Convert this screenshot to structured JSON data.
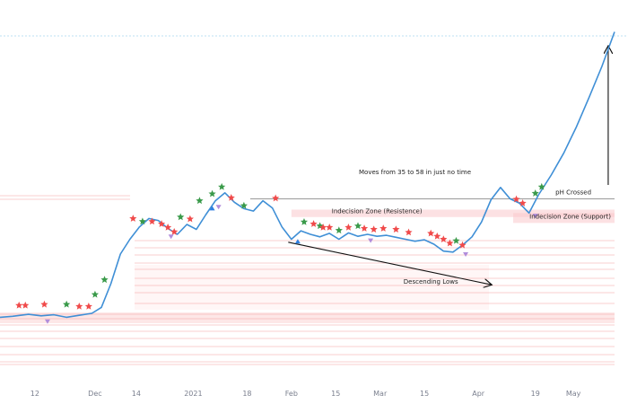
{
  "chart_data": {
    "type": "line",
    "title": "",
    "xlabel": "",
    "ylabel": "",
    "x_ticks": [
      "12",
      "Dec",
      "14",
      "2021",
      "18",
      "Feb",
      "15",
      "Mar",
      "15",
      "Apr",
      "19",
      "May"
    ],
    "ylim": [
      20,
      90
    ],
    "grid": false,
    "series": [
      {
        "color": "#3f8fd6",
        "points": [
          [
            "2020-11-01",
            31.2
          ],
          [
            "2020-11-05",
            31.4
          ],
          [
            "2020-11-10",
            31.8
          ],
          [
            "2020-11-14",
            31.5
          ],
          [
            "2020-11-18",
            31.7
          ],
          [
            "2020-11-22",
            31.2
          ],
          [
            "2020-11-26",
            31.6
          ],
          [
            "2020-11-30",
            32.0
          ],
          [
            "2020-12-03",
            33.2
          ],
          [
            "2020-12-06",
            38.0
          ],
          [
            "2020-12-09",
            44.0
          ],
          [
            "2020-12-12",
            47.0
          ],
          [
            "2020-12-15",
            49.5
          ],
          [
            "2020-12-18",
            51.2
          ],
          [
            "2020-12-21",
            50.8
          ],
          [
            "2020-12-24",
            49.2
          ],
          [
            "2020-12-27",
            48.0
          ],
          [
            "2020-12-30",
            50.0
          ],
          [
            "2021-01-02",
            49.0
          ],
          [
            "2021-01-05",
            52.0
          ],
          [
            "2021-01-08",
            54.8
          ],
          [
            "2021-01-11",
            56.4
          ],
          [
            "2021-01-14",
            54.5
          ],
          [
            "2021-01-17",
            53.2
          ],
          [
            "2021-01-20",
            52.7
          ],
          [
            "2021-01-23",
            54.8
          ],
          [
            "2021-01-26",
            53.3
          ],
          [
            "2021-01-29",
            49.5
          ],
          [
            "2021-02-01",
            47.0
          ],
          [
            "2021-02-04",
            48.7
          ],
          [
            "2021-02-07",
            48.0
          ],
          [
            "2021-02-10",
            47.5
          ],
          [
            "2021-02-13",
            48.2
          ],
          [
            "2021-02-16",
            47.0
          ],
          [
            "2021-02-19",
            48.3
          ],
          [
            "2021-02-22",
            47.6
          ],
          [
            "2021-02-25",
            48.0
          ],
          [
            "2021-02-28",
            47.6
          ],
          [
            "2021-03-03",
            47.8
          ],
          [
            "2021-03-06",
            47.4
          ],
          [
            "2021-03-09",
            47.0
          ],
          [
            "2021-03-12",
            46.6
          ],
          [
            "2021-03-15",
            46.9
          ],
          [
            "2021-03-18",
            46.0
          ],
          [
            "2021-03-21",
            44.6
          ],
          [
            "2021-03-24",
            44.4
          ],
          [
            "2021-03-27",
            45.8
          ],
          [
            "2021-03-30",
            47.5
          ],
          [
            "2021-04-02",
            50.5
          ],
          [
            "2021-04-05",
            55.0
          ],
          [
            "2021-04-08",
            57.5
          ],
          [
            "2021-04-11",
            55.2
          ],
          [
            "2021-04-14",
            54.3
          ],
          [
            "2021-04-17",
            52.3
          ],
          [
            "2021-04-20",
            56.0
          ],
          [
            "2021-04-24",
            60.0
          ],
          [
            "2021-04-28",
            64.5
          ],
          [
            "2021-05-02",
            69.8
          ],
          [
            "2021-05-06",
            75.8
          ],
          [
            "2021-05-10",
            82.0
          ],
          [
            "2021-05-14",
            89.0
          ]
        ]
      }
    ],
    "markers": {
      "green_stars": [
        [
          "2020-11-22",
          33.8
        ],
        [
          "2020-12-01",
          35.8
        ],
        [
          "2020-12-04",
          38.8
        ],
        [
          "2020-12-16",
          50.6
        ],
        [
          "2020-12-28",
          51.5
        ],
        [
          "2021-01-03",
          54.8
        ],
        [
          "2021-01-07",
          56.2
        ],
        [
          "2021-01-10",
          57.6
        ],
        [
          "2021-01-17",
          53.8
        ],
        [
          "2021-02-05",
          50.5
        ],
        [
          "2021-02-10",
          49.7
        ],
        [
          "2021-02-16",
          48.8
        ],
        [
          "2021-02-22",
          49.7
        ],
        [
          "2021-03-25",
          46.7
        ],
        [
          "2021-04-19",
          56.3
        ],
        [
          "2021-04-21",
          57.6
        ]
      ],
      "red_stars": [
        [
          "2020-11-07",
          33.6
        ],
        [
          "2020-11-09",
          33.6
        ],
        [
          "2020-11-15",
          33.8
        ],
        [
          "2020-11-26",
          33.4
        ],
        [
          "2020-11-29",
          33.4
        ],
        [
          "2020-12-13",
          51.2
        ],
        [
          "2020-12-19",
          50.6
        ],
        [
          "2020-12-22",
          50.1
        ],
        [
          "2020-12-24",
          49.4
        ],
        [
          "2020-12-26",
          48.5
        ],
        [
          "2020-12-31",
          51.1
        ],
        [
          "2021-01-13",
          55.4
        ],
        [
          "2021-01-27",
          55.3
        ],
        [
          "2021-02-08",
          50.1
        ],
        [
          "2021-02-11",
          49.4
        ],
        [
          "2021-02-13",
          49.4
        ],
        [
          "2021-02-19",
          49.4
        ],
        [
          "2021-02-24",
          49.2
        ],
        [
          "2021-02-27",
          49.0
        ],
        [
          "2021-03-02",
          49.2
        ],
        [
          "2021-03-06",
          49.0
        ],
        [
          "2021-03-10",
          48.4
        ],
        [
          "2021-03-17",
          48.2
        ],
        [
          "2021-03-19",
          47.6
        ],
        [
          "2021-03-21",
          47.0
        ],
        [
          "2021-03-23",
          46.2
        ],
        [
          "2021-03-27",
          45.8
        ],
        [
          "2021-04-13",
          55.1
        ],
        [
          "2021-04-15",
          54.3
        ]
      ],
      "purple_down_triangles": [
        [
          "2020-11-16",
          30.4
        ],
        [
          "2020-12-25",
          47.6
        ],
        [
          "2021-01-09",
          53.6
        ],
        [
          "2021-02-26",
          46.8
        ],
        [
          "2021-03-28",
          44.0
        ],
        [
          "2021-04-19",
          51.8
        ]
      ],
      "blue_up_triangles": [
        [
          "2021-01-07",
          53.2
        ],
        [
          "2021-02-03",
          46.5
        ]
      ]
    },
    "lines": [
      {
        "label": "Descending Lows",
        "from": [
          "2021-01-31",
          46.4
        ],
        "to": [
          "2021-04-05",
          37.8
        ],
        "arrow": true
      },
      {
        "label": "pH Crossed",
        "from": [
          "2021-01-19",
          55.2
        ],
        "to": [
          "2021-05-14",
          55.2
        ]
      },
      {
        "label": "Moves from 35 to 58 in just no time",
        "from": [
          "2021-05-12",
          58.0
        ],
        "to": [
          "2021-05-12",
          86.0
        ],
        "arrow": true
      }
    ],
    "zones": [
      {
        "label": "Indecision Zone (Resistence)",
        "from": "2021-02-01",
        "to": "2021-05-14",
        "y_range": [
          51.5,
          53.0
        ]
      },
      {
        "label": "Indecision Zone (Support)",
        "from": "2021-04-12",
        "to": "2021-05-14",
        "y_range": [
          50.3,
          52.3
        ]
      }
    ],
    "annotations": [
      {
        "text": "Moves from 35 to 58 in just no time",
        "x": "2021-03-12",
        "y": 60.2
      },
      {
        "text": "pH Crossed",
        "x": "2021-05-01",
        "y": 56.1
      },
      {
        "text": "Indecision Zone (Resistence)",
        "x": "2021-02-28",
        "y": 52.3
      },
      {
        "text": "Indecision Zone (Support)",
        "x": "2021-04-30",
        "y": 51.2
      },
      {
        "text": "Descending Lows",
        "x": "2021-03-17",
        "y": 38.0
      }
    ]
  }
}
